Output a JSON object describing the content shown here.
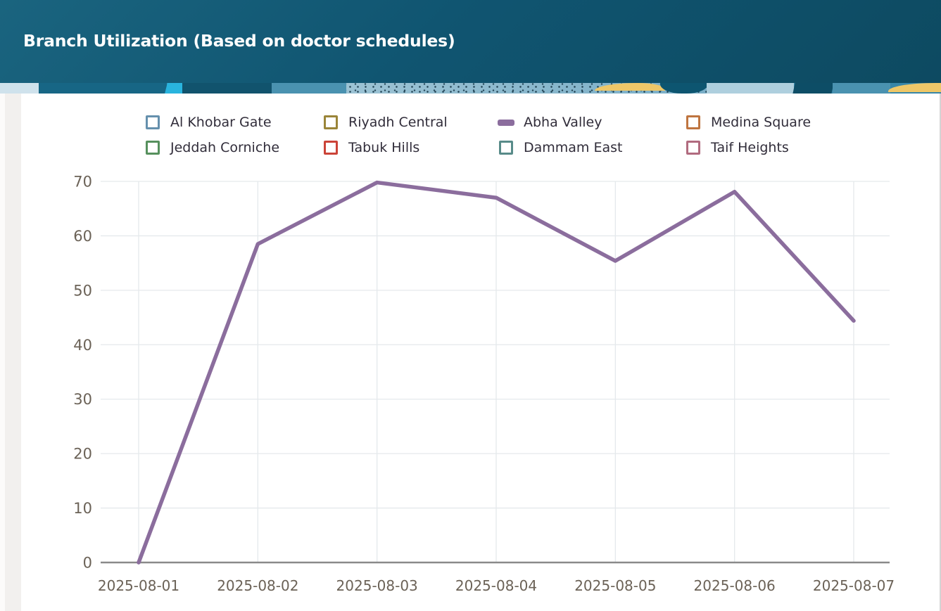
{
  "header": {
    "title": "Branch Utilization (Based on doctor schedules)"
  },
  "legend": {
    "items": [
      {
        "label": "Al Khobar Gate",
        "color": "#6590ad",
        "marker": "box",
        "visible": false
      },
      {
        "label": "Riyadh Central",
        "color": "#9a8539",
        "marker": "box",
        "visible": false
      },
      {
        "label": "Abha Valley",
        "color": "#8b6d9d",
        "marker": "dash",
        "visible": true
      },
      {
        "label": "Medina Square",
        "color": "#bf7540",
        "marker": "box",
        "visible": false
      },
      {
        "label": "Jeddah Corniche",
        "color": "#56905d",
        "marker": "box",
        "visible": false
      },
      {
        "label": "Tabuk Hills",
        "color": "#cb4338",
        "marker": "box",
        "visible": false
      },
      {
        "label": "Dammam East",
        "color": "#588b89",
        "marker": "box",
        "visible": false
      },
      {
        "label": "Taif Heights",
        "color": "#b16b7f",
        "marker": "box",
        "visible": false
      }
    ]
  },
  "chart_data": {
    "type": "line",
    "title": "Branch Utilization (Based on doctor schedules)",
    "x": [
      "2025-08-01",
      "2025-08-02",
      "2025-08-03",
      "2025-08-04",
      "2025-08-05",
      "2025-08-06",
      "2025-08-07"
    ],
    "series": [
      {
        "name": "Al Khobar Gate",
        "color": "#6590ad",
        "visible": false
      },
      {
        "name": "Riyadh Central",
        "color": "#9a8539",
        "visible": false
      },
      {
        "name": "Abha Valley",
        "color": "#8b6d9d",
        "visible": true,
        "values": [
          0,
          58.5,
          69.8,
          67,
          55.4,
          68.1,
          44.4
        ]
      },
      {
        "name": "Medina Square",
        "color": "#bf7540",
        "visible": false
      },
      {
        "name": "Jeddah Corniche",
        "color": "#56905d",
        "visible": false
      },
      {
        "name": "Tabuk Hills",
        "color": "#cb4338",
        "visible": false
      },
      {
        "name": "Dammam East",
        "color": "#588b89",
        "visible": false
      },
      {
        "name": "Taif Heights",
        "color": "#b16b7f",
        "visible": false
      }
    ],
    "xlabel": "",
    "ylabel": "",
    "ylim": [
      0,
      70
    ],
    "yticks": [
      0,
      10,
      20,
      30,
      40,
      50,
      60,
      70
    ],
    "grid": true,
    "legend_position": "top"
  },
  "colors": {
    "header_bg": "#0f5068",
    "accent_cyan": "#29b4de",
    "banner_yellow": "#eec768",
    "active_line": "#8b6d9d",
    "axis_text": "#6b6257",
    "gridline": "#e5e9ec"
  }
}
